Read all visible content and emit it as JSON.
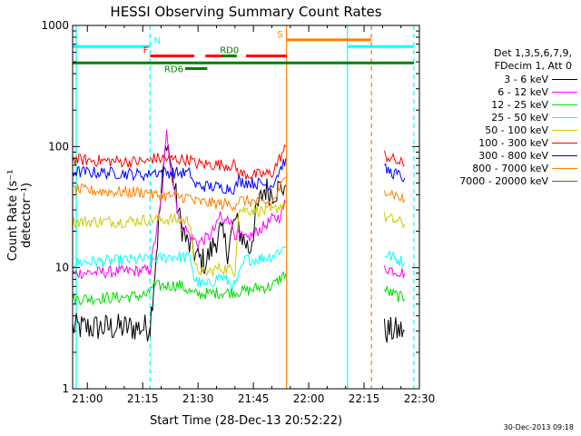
{
  "page": {
    "title": "HESSI Observing Summary Count Rates",
    "ylabel": "Count Rate (s⁻¹ detector⁻¹)",
    "xlabel": "Start Time (28-Dec-13 20:52:22)",
    "footer": "30-Dec-2013 09:18"
  },
  "legend": {
    "header1": "Det 1,3,5,6,7,9,",
    "header2": "FDecim 1, Att 0",
    "items": [
      {
        "label": "3 - 6 keV",
        "color": "#000000"
      },
      {
        "label": "6 - 12 keV",
        "color": "#ff00ff"
      },
      {
        "label": "12 - 25 keV",
        "color": "#00dd00"
      },
      {
        "label": "25 - 50 keV",
        "color": "#00ffff"
      },
      {
        "label": "50 - 100 keV",
        "color": "#cccc00"
      },
      {
        "label": "100 - 300 keV",
        "color": "#ff0000"
      },
      {
        "label": "300 - 800 keV",
        "color": "#0000ff"
      },
      {
        "label": "800 - 7000 keV",
        "color": "#ff8000"
      },
      {
        "label": "7000 - 20000 keV",
        "color": "#8b5a00"
      }
    ]
  },
  "chart_data": {
    "type": "line",
    "xaxis": {
      "min": 56.0,
      "max": 150.0,
      "ticks": [
        60,
        75,
        90,
        105,
        120,
        135,
        150
      ],
      "tick_labels": [
        "21:00",
        "21:15",
        "21:30",
        "21:45",
        "22:00",
        "22:15",
        "22:30"
      ],
      "unit": "minutes after 20:00"
    },
    "yaxis": {
      "scale": "log",
      "min": 1,
      "max": 1000,
      "ticks": [
        1,
        10,
        100,
        1000
      ],
      "tick_labels": [
        "1",
        "10",
        "100",
        "1000"
      ]
    },
    "flags": [
      {
        "label": "N",
        "color": "#00ffff",
        "segments": [
          [
            56.0,
            77.0
          ],
          [
            130.5,
            148.5
          ]
        ],
        "y": 670,
        "dashed": false
      },
      {
        "label": "S",
        "color": "#ff8000",
        "segments": [
          [
            114.0,
            137.0
          ]
        ],
        "y": 760,
        "dashed": false
      },
      {
        "label": "F",
        "color": "#ff0000",
        "segments": [
          [
            77.0,
            89.0
          ],
          [
            92.0,
            97.0
          ],
          [
            98.0,
            100.0
          ],
          [
            103.0,
            114.0
          ]
        ],
        "y": 560,
        "dashed": false
      },
      {
        "label": "",
        "color": "#008000",
        "segments": [
          [
            56.0,
            148.5
          ]
        ],
        "y": 490,
        "dashed": false
      },
      {
        "label": "RD0",
        "color": "#008000",
        "segments": [
          [
            96.5,
            100.5
          ]
        ],
        "y": 560,
        "dashed": false
      },
      {
        "label": "RD6",
        "color": "#008000",
        "segments": [
          [
            86.5,
            92.5
          ]
        ],
        "y": 440,
        "dashed": false
      }
    ],
    "vlines": [
      {
        "x": 57.0,
        "color": "#00ffff",
        "dashed": false
      },
      {
        "x": 77.0,
        "color": "#00ffff",
        "dashed": true
      },
      {
        "x": 114.0,
        "color": "#ff8000",
        "dashed": false
      },
      {
        "x": 130.5,
        "color": "#00ffff",
        "dashed": false
      },
      {
        "x": 137.0,
        "color": "#ff8000",
        "dashed": true
      },
      {
        "x": 148.5,
        "color": "#00ffff",
        "dashed": true
      }
    ],
    "series": [
      {
        "name": "3 - 6 keV",
        "color": "#000000",
        "segments": [
          {
            "x": [
              56,
              77
            ],
            "y": [
              3.2,
              3.2
            ]
          },
          {
            "x": [
              77,
              80,
              81.5,
              83,
              85,
              87,
              90,
              92,
              94,
              96,
              98,
              100,
              102,
              104,
              106,
              108,
              110,
              112,
              113.8
            ],
            "y": [
              3.3,
              40,
              120,
              60,
              25,
              16,
              12,
              11,
              15,
              20,
              14,
              25,
              18,
              14,
              30,
              45,
              42,
              45,
              48
            ]
          },
          {
            "x": [
              140.5,
              146
            ],
            "y": [
              3.0,
              3.0
            ]
          }
        ]
      },
      {
        "name": "6 - 12 keV",
        "color": "#ff00ff",
        "segments": [
          {
            "x": [
              56,
              70,
              77
            ],
            "y": [
              9.0,
              9.3,
              9.5
            ]
          },
          {
            "x": [
              77,
              80,
              81.5,
              83,
              85,
              88,
              90,
              93,
              95,
              96,
              97,
              98,
              100,
              103,
              106,
              108,
              110,
              112,
              113.8
            ],
            "y": [
              9.5,
              35,
              130,
              55,
              25,
              18,
              16,
              18,
              22,
              28,
              22,
              28,
              19,
              17,
              20,
              22,
              25,
              26,
              35
            ]
          },
          {
            "x": [
              140.5,
              146
            ],
            "y": [
              10.0,
              9.0
            ]
          }
        ]
      },
      {
        "name": "12 - 25 keV",
        "color": "#00dd00",
        "segments": [
          {
            "x": [
              56,
              70,
              77
            ],
            "y": [
              5.5,
              5.7,
              6.0
            ]
          },
          {
            "x": [
              77,
              85,
              89,
              92,
              95,
              100,
              104,
              106,
              110,
              113.8
            ],
            "y": [
              7.0,
              7.2,
              6.0,
              6.1,
              6.2,
              6.3,
              6.5,
              6.8,
              7.0,
              9.0
            ]
          },
          {
            "x": [
              140.5,
              146
            ],
            "y": [
              6.5,
              5.5
            ]
          }
        ]
      },
      {
        "name": "25 - 50 keV",
        "color": "#00ffff",
        "segments": [
          {
            "x": [
              56,
              70,
              77
            ],
            "y": [
              11.0,
              11.5,
              11.8
            ]
          },
          {
            "x": [
              77,
              83,
              88,
              89,
              92,
              96,
              100,
              103,
              105,
              107,
              110,
              113.8
            ],
            "y": [
              11.5,
              12.5,
              12.0,
              8.0,
              7.0,
              8.5,
              7.0,
              12.0,
              11.5,
              12.0,
              12.5,
              15.0
            ]
          },
          {
            "x": [
              140.5,
              146
            ],
            "y": [
              13.0,
              11.0
            ]
          }
        ]
      },
      {
        "name": "50 - 100 keV",
        "color": "#cccc00",
        "segments": [
          {
            "x": [
              56,
              70,
              77
            ],
            "y": [
              24.0,
              24.0,
              25.0
            ]
          },
          {
            "x": [
              77,
              83,
              88,
              89,
              92,
              96,
              100,
              101,
              105,
              110,
              113.8
            ],
            "y": [
              25.0,
              25.0,
              24.0,
              10.0,
              9.0,
              10.0,
              9.5,
              30.0,
              30.0,
              29.0,
              35.0
            ]
          },
          {
            "x": [
              140.5,
              146
            ],
            "y": [
              26.0,
              23.0
            ]
          }
        ]
      },
      {
        "name": "100 - 300 keV",
        "color": "#ff0000",
        "segments": [
          {
            "x": [
              56,
              70,
              77
            ],
            "y": [
              78,
              75,
              75
            ]
          },
          {
            "x": [
              77,
              88,
              89,
              100,
              101,
              105,
              110,
              113.8
            ],
            "y": [
              80,
              78,
              72,
              70,
              60,
              58,
              60,
              100
            ]
          },
          {
            "x": [
              140.5,
              146
            ],
            "y": [
              85,
              70
            ]
          }
        ]
      },
      {
        "name": "300 - 800 keV",
        "color": "#0000ff",
        "segments": [
          {
            "x": [
              56,
              70,
              77
            ],
            "y": [
              62,
              60,
              58
            ]
          },
          {
            "x": [
              77,
              88,
              89,
              100,
              101,
              105,
              110,
              113.8
            ],
            "y": [
              62,
              60,
              48,
              45,
              52,
              50,
              48,
              80
            ]
          },
          {
            "x": [
              140.5,
              146
            ],
            "y": [
              65,
              55
            ]
          }
        ]
      },
      {
        "name": "800 - 7000 keV",
        "color": "#ff8000",
        "segments": [
          {
            "x": [
              56,
              70,
              77
            ],
            "y": [
              44,
              42,
              42
            ]
          },
          {
            "x": [
              77,
              88,
              89,
              100,
              101,
              105,
              110,
              113.8
            ],
            "y": [
              40,
              38,
              35,
              33,
              36,
              35,
              34,
              55
            ]
          },
          {
            "x": [
              140.5,
              146
            ],
            "y": [
              45,
              36
            ]
          }
        ]
      },
      {
        "name": "7000 - 20000 keV",
        "color": "#8b5a00",
        "segments": []
      }
    ]
  }
}
